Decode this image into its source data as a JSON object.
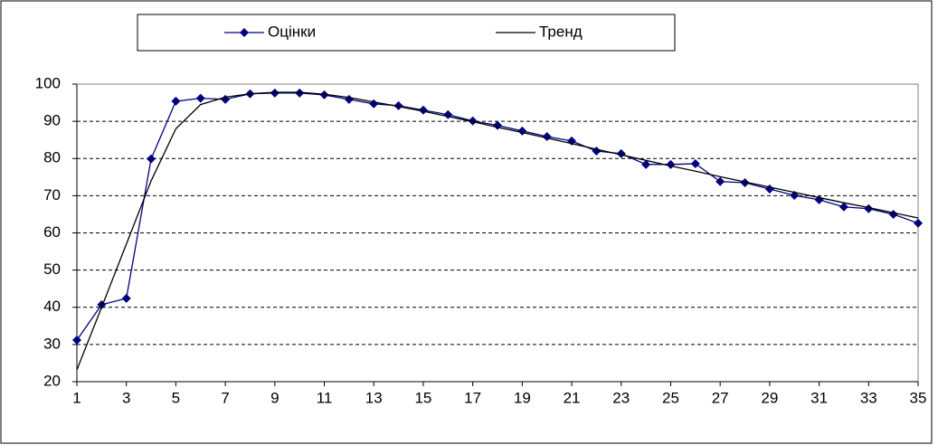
{
  "chart_data": {
    "type": "line",
    "x": [
      1,
      2,
      3,
      4,
      5,
      6,
      7,
      8,
      9,
      10,
      11,
      12,
      13,
      14,
      15,
      16,
      17,
      18,
      19,
      20,
      21,
      22,
      23,
      24,
      25,
      26,
      27,
      28,
      29,
      30,
      31,
      32,
      33,
      34,
      35
    ],
    "series": [
      {
        "name": "Оцінки",
        "color": "#000080",
        "marker": "diamond",
        "values": [
          31.2,
          40.7,
          42.4,
          79.9,
          95.4,
          96.2,
          95.9,
          97.4,
          97.6,
          97.6,
          97.1,
          95.9,
          94.7,
          94.2,
          93.0,
          91.8,
          90.1,
          88.9,
          87.4,
          85.9,
          84.7,
          82.0,
          81.3,
          78.4,
          78.4,
          78.6,
          73.8,
          73.5,
          71.8,
          70.1,
          68.9,
          67.0,
          66.5,
          65.0,
          62.6
        ]
      },
      {
        "name": "Тренд",
        "color": "#000000",
        "values": [
          23.2,
          40,
          57,
          74,
          88,
          94.5,
          96.5,
          97.4,
          97.8,
          97.8,
          97.3,
          96.4,
          95.2,
          94,
          92.7,
          91.3,
          89.9,
          88.4,
          87,
          85.5,
          84,
          82.5,
          81,
          79.5,
          78,
          76.6,
          75.1,
          73.7,
          72.3,
          70.9,
          69.5,
          68.1,
          66.8,
          65.4,
          64
        ]
      }
    ],
    "xlim": [
      1,
      35
    ],
    "xticks": [
      1,
      3,
      5,
      7,
      9,
      11,
      13,
      15,
      17,
      19,
      21,
      23,
      25,
      27,
      29,
      31,
      33,
      35
    ],
    "ylim": [
      20,
      100
    ],
    "yticks": [
      20,
      30,
      40,
      50,
      60,
      70,
      80,
      90,
      100
    ],
    "grid": true,
    "legend": "top"
  }
}
